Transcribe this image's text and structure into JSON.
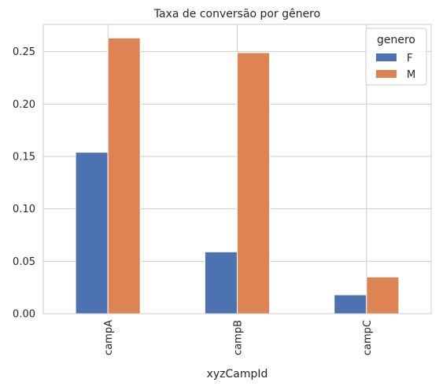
{
  "chart_data": {
    "type": "bar",
    "title": "Taxa de conversão por gênero",
    "xlabel": "xyzCampId",
    "ylabel": "",
    "categories": [
      "campA",
      "campB",
      "campC"
    ],
    "series": [
      {
        "name": "F",
        "values": [
          0.154,
          0.059,
          0.018
        ],
        "color": "#4c72b0"
      },
      {
        "name": "M",
        "values": [
          0.263,
          0.249,
          0.035
        ],
        "color": "#dd8452"
      }
    ],
    "ylim": [
      0,
      0.276
    ],
    "yticks": [
      "0.00",
      "0.05",
      "0.10",
      "0.15",
      "0.20",
      "0.25"
    ],
    "legend": {
      "title": "genero",
      "placement": "top-right"
    },
    "grid": true,
    "colors": {
      "grid": "#cccccc",
      "frame": "#cccccc",
      "text": "#262626"
    }
  }
}
